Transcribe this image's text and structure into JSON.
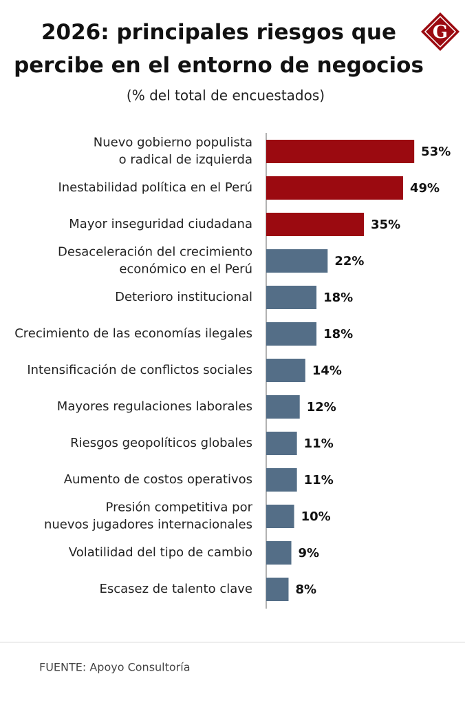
{
  "chart_data": {
    "type": "bar",
    "orientation": "horizontal",
    "title": "2026: principales riesgos que\npercibe en el entorno de negocios",
    "subtitle": "(% del total de encuestados)",
    "logo": "G",
    "categories": [
      "Nuevo gobierno populista\no radical de izquierda",
      "Inestabilidad política en el Perú",
      "Mayor inseguridad ciudadana",
      "Desaceleración del crecimiento\neconómico en el Perú",
      "Deterioro institucional",
      "Crecimiento de las economías ilegales",
      "Intensificación de conflictos sociales",
      "Mayores regulaciones laborales",
      "Riesgos geopolíticos globales",
      "Aumento de costos operativos",
      "Presión competitiva por\nnuevos jugadores internacionales",
      "Volatilidad del tipo de cambio",
      "Escasez de talento clave"
    ],
    "values": [
      53,
      49,
      35,
      22,
      18,
      18,
      14,
      12,
      11,
      11,
      10,
      9,
      8
    ],
    "value_labels": [
      "53%",
      "49%",
      "35%",
      "22%",
      "18%",
      "18%",
      "14%",
      "12%",
      "11%",
      "11%",
      "10%",
      "9%",
      "8%"
    ],
    "colors": [
      "#9b0a10",
      "#9b0a10",
      "#9b0a10",
      "#546e87",
      "#546e87",
      "#546e87",
      "#546e87",
      "#546e87",
      "#546e87",
      "#546e87",
      "#546e87",
      "#546e87",
      "#546e87"
    ],
    "source": "FUENTE: Apoyo Consultoría"
  }
}
